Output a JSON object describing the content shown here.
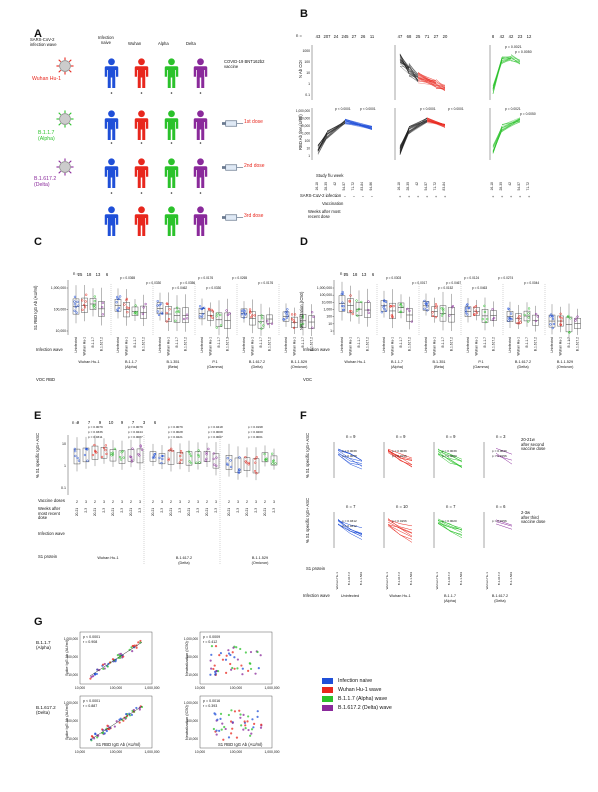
{
  "panels": {
    "A": {
      "letter": "A",
      "header_wave": "SARS-CoV-2\ninfection wave",
      "columns": [
        "Infection\nnaive",
        "Wuhan",
        "Alpha",
        "Delta"
      ],
      "vaccine_label": "COVID-19 BNT162b2\nvaccine",
      "waves": [
        {
          "label": "Wuhan Hu-1",
          "color": "#e8271d"
        },
        {
          "label": "B.1.1.7\n(Alpha)",
          "color": "#2bc22b"
        },
        {
          "label": "B.1.617.2\n(Delta)",
          "color": "#8a2a9b"
        }
      ],
      "doses": [
        "1st dose",
        "2nd dose",
        "3rd dose"
      ],
      "person_colors": [
        "#1f4fd8",
        "#e8271d",
        "#2bc22b",
        "#8a2a9b"
      ]
    },
    "B": {
      "letter": "B",
      "n_label": "n =",
      "n_values": [
        "43",
        "207",
        "24",
        "245",
        "27",
        "26",
        "11",
        "47",
        "68",
        "25",
        "71",
        "27",
        "20",
        "8",
        "42",
        "42",
        "23",
        "12"
      ],
      "y_top_label": "N Ab COI",
      "y_bottom_label": "RBD Ab titer (U/ml)",
      "row_labels": [
        "Study f/u week",
        "SARS-CoV-2 infection",
        "Vaccination",
        "Weeks after most\nrecent dose"
      ],
      "pvals_top": [
        "p = 0.0021",
        "p = 0.0050"
      ],
      "pvals_bottom": [
        "p < 0.0001",
        "p < 0.0001",
        "p < 0.0001",
        "p < 0.0001",
        "p = 0.0021",
        "p = 0.0050"
      ]
    },
    "C": {
      "letter": "C",
      "n_label": "n =",
      "n_values": [
        "25",
        "18",
        "13",
        "6"
      ],
      "y_label": "S1 RBD IgG Ab (AU/ml)",
      "y_ticks": [
        "1,000,000",
        "100,000",
        "10,000"
      ],
      "pvals": [
        "p = 0.0365",
        "p = 0.0330",
        "p = 0.0462",
        "p = 0.0176",
        "p = 0.0356",
        "p = 0.0330",
        "p = 0.0265",
        "p = 0.0176"
      ],
      "row_label": "Infection wave",
      "groups": [
        "Uninfected",
        "Wuhan Hu-1",
        "B.1.1.7",
        "B.1.617.2"
      ],
      "voc_label": "VOC RBD",
      "voc": [
        "Wuhan Hu-1",
        "B.1.1.7\n(Alpha)",
        "B.1.351\n(Beta)",
        "P.1\n(Gamma)",
        "B.1.617.2\n(Delta)",
        "B.1.1.529\n(Omicron)"
      ]
    },
    "D": {
      "letter": "D",
      "n_label": "n =",
      "n_values": [
        "25",
        "18",
        "13",
        "6"
      ],
      "y_label": "Neutralization (IC50)",
      "y_ticks": [
        "1,000,000",
        "100,000",
        "10,000",
        "1,000",
        "100",
        "10",
        "1"
      ],
      "pvals": [
        "p = 0.0303",
        "p = 0.0017",
        "p = 0.0152",
        "p = 0.0124",
        "p = 0.0467",
        "p = 0.0463",
        "p = 0.0274",
        "p = 0.0044"
      ],
      "row_label": "Infection wave",
      "groups": [
        "Uninfected",
        "Wuhan Hu-1",
        "B.1.1.7",
        "B.1.617.2"
      ],
      "voc_label": "VOC",
      "voc": [
        "Wuhan Hu-1",
        "B.1.1.7\n(Alpha)",
        "B.1.351\n(Beta)",
        "P.1\n(Gamma)",
        "B.1.617.2\n(Delta)",
        "B.1.1.529\n(Omicron)"
      ]
    },
    "E": {
      "letter": "E",
      "n_label": "n =",
      "n_values": [
        "9",
        "7",
        "9",
        "10",
        "9",
        "7",
        "3",
        "6"
      ],
      "y_label": "% S1 specific IgG+ ASC",
      "y_ticks": [
        "10",
        "1",
        "0.1"
      ],
      "pvals": [
        "p = 0.0079",
        "p = 0.0079",
        "p = 0.0079",
        "p = 0.0418",
        "p = 0.0198",
        "p = 0.0336",
        "p = 0.0244",
        "p = 0.0028",
        "p = 0.0008",
        "p = 0.0200",
        "p = 0.0311",
        "p = 0.0087",
        "p = 0.0221",
        "p = 0.0007",
        "p = 0.0001"
      ],
      "row_labels": [
        "Vaccine doses",
        "Weeks after\nmost recent\ndose",
        "Infection wave",
        "S1 protein"
      ],
      "s1_proteins": [
        "Wuhan Hu-1",
        "B.1.617.2\n(Delta)",
        "B.1.1.529\n(Omicron)"
      ]
    },
    "F": {
      "letter": "F",
      "y_label": "% S1 specific IgG+ ASC",
      "top_n": [
        "n = 9",
        "n = 9",
        "n = 9",
        "n = 3"
      ],
      "bottom_n": [
        "n = 7",
        "n = 10",
        "n = 7",
        "n = 6"
      ],
      "top_note": "20-21w\nafter second\nvaccine dose",
      "bottom_note": "2-3w\nafter third\nvaccine dose",
      "pvals": [
        "p = 0.0039",
        "p = 0.0039",
        "p = 0.0039",
        "p = 0.0039",
        "p = 0.0078",
        "p = 0.0156",
        "p = 0.0020",
        "p = 0.0156",
        "p = 0.0312",
        "p = 0.0156",
        "p = 0.0020",
        "p = 0.0156",
        "p = 0.0312"
      ],
      "row_labels": [
        "S1 protein",
        "Infection wave"
      ],
      "waves": [
        "Uninfected",
        "Wuhan Hu-1",
        "B.1.1.7\n(Alpha)",
        "B.1.617.2\n(Delta)"
      ]
    },
    "G": {
      "letter": "G",
      "rows": [
        {
          "label": "B.1.1.7\n(Alpha)",
          "left_ylabel": "Spike IgG Ab (AU/ml)",
          "left_stat": "p < 0.0001\nr = 0.908",
          "right_ylabel": "Neutralization (IC50)",
          "right_stat": "p = 0.0009\nr = 0.412"
        },
        {
          "label": "B.1.617.2\n(Delta)",
          "left_ylabel": "Spike IgG Ab (AU/ml)",
          "left_stat": "p < 0.0001\nr = 0.887",
          "right_ylabel": "Neutralization (IC50)",
          "right_stat": "p = 0.0016\nr = 0.393"
        }
      ],
      "xlabel": "S1 RBD IgG Ab (AU/ml)",
      "x_ticks": [
        "10,000",
        "100,000",
        "1,000,000"
      ]
    }
  },
  "legend": [
    {
      "label": "Infection naive",
      "color": "#1f4fd8"
    },
    {
      "label": "Wuhan Hu-1 wave",
      "color": "#e8271d"
    },
    {
      "label": "B.1.1.7 (Alpha) wave",
      "color": "#2bc22b"
    },
    {
      "label": "B.1.617.2 (Delta) wave",
      "color": "#8a2a9b"
    }
  ]
}
